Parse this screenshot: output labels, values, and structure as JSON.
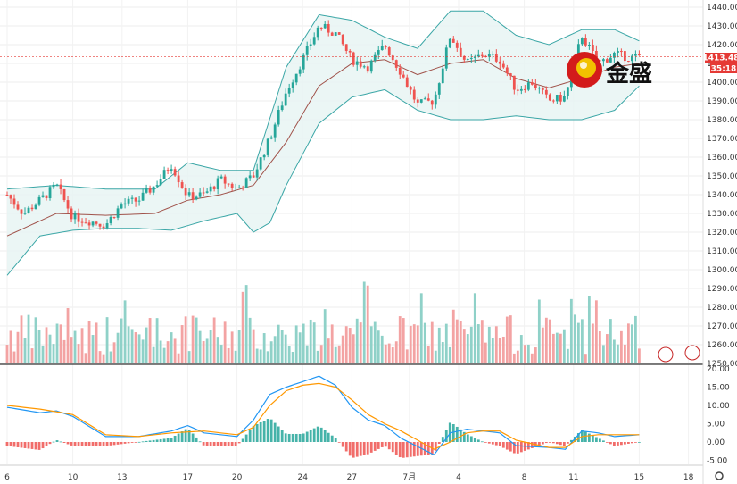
{
  "chart_data": {
    "type": "candlestick",
    "price_axis": {
      "range": [
        1245,
        1445
      ],
      "ticks": [
        "1440.00",
        "1430.00",
        "1420.00",
        "1410.00",
        "1400.00",
        "1390.00",
        "1380.00",
        "1370.00",
        "1360.00",
        "1350.00",
        "1340.00",
        "1330.00",
        "1320.00",
        "1310.00",
        "1300.00",
        "1290.00",
        "1280.00",
        "1270.00",
        "1260.00",
        "1250.00"
      ]
    },
    "macd_axis": {
      "range": [
        -6,
        21
      ],
      "ticks": [
        "20.00",
        "15.00",
        "10.00",
        "5.00",
        "0.00",
        "-5.00"
      ]
    },
    "date_ticks": [
      {
        "label": "6",
        "day": 0
      },
      {
        "label": "10",
        "day": 4
      },
      {
        "label": "13",
        "day": 7
      },
      {
        "label": "17",
        "day": 11
      },
      {
        "label": "20",
        "day": 14
      },
      {
        "label": "24",
        "day": 18
      },
      {
        "label": "27",
        "day": 21
      },
      {
        "label": "7月",
        "day": 24.5
      },
      {
        "label": "4",
        "day": 27.5
      },
      {
        "label": "8",
        "day": 31.5
      },
      {
        "label": "11",
        "day": 34.5
      },
      {
        "label": "15",
        "day": 38.5
      },
      {
        "label": "18",
        "day": 41.5
      }
    ],
    "last_price": {
      "value": "1413.48",
      "countdown": "35:18"
    },
    "close_path": [
      [
        0,
        1340
      ],
      [
        1,
        1330
      ],
      [
        2,
        1337
      ],
      [
        3,
        1345
      ],
      [
        4,
        1328
      ],
      [
        5,
        1326
      ],
      [
        6,
        1324
      ],
      [
        7,
        1335
      ],
      [
        8,
        1337
      ],
      [
        9,
        1345
      ],
      [
        10,
        1356
      ],
      [
        11,
        1339
      ],
      [
        12,
        1340
      ],
      [
        13,
        1348
      ],
      [
        14,
        1343
      ],
      [
        15,
        1350
      ],
      [
        16,
        1370
      ],
      [
        17,
        1395
      ],
      [
        18,
        1412
      ],
      [
        19,
        1430
      ],
      [
        20,
        1426
      ],
      [
        21,
        1412
      ],
      [
        22,
        1408
      ],
      [
        23,
        1420
      ],
      [
        24,
        1405
      ],
      [
        25,
        1388
      ],
      [
        26,
        1390
      ],
      [
        27,
        1425
      ],
      [
        28,
        1410
      ],
      [
        29,
        1415
      ],
      [
        30,
        1412
      ],
      [
        31,
        1396
      ],
      [
        32,
        1400
      ],
      [
        33,
        1390
      ],
      [
        34,
        1392
      ],
      [
        35,
        1425
      ],
      [
        36,
        1410
      ],
      [
        37,
        1415
      ],
      [
        38,
        1413
      ],
      [
        38.7,
        1413.5
      ]
    ],
    "bollinger": {
      "upper": [
        [
          0,
          1343
        ],
        [
          3,
          1345
        ],
        [
          6,
          1343
        ],
        [
          9,
          1343
        ],
        [
          11,
          1357
        ],
        [
          13,
          1353
        ],
        [
          15,
          1353
        ],
        [
          17,
          1408
        ],
        [
          19,
          1436
        ],
        [
          21,
          1433
        ],
        [
          23,
          1424
        ],
        [
          25,
          1418
        ],
        [
          27,
          1438
        ],
        [
          29,
          1438
        ],
        [
          31,
          1425
        ],
        [
          33,
          1420
        ],
        [
          35,
          1428
        ],
        [
          37,
          1428
        ],
        [
          38.5,
          1422
        ]
      ],
      "middle": [
        [
          0,
          1318
        ],
        [
          3,
          1330
        ],
        [
          6,
          1329
        ],
        [
          9,
          1330
        ],
        [
          11,
          1337
        ],
        [
          13,
          1340
        ],
        [
          15,
          1345
        ],
        [
          17,
          1368
        ],
        [
          19,
          1398
        ],
        [
          21,
          1410
        ],
        [
          23,
          1412
        ],
        [
          25,
          1404
        ],
        [
          27,
          1410
        ],
        [
          29,
          1412
        ],
        [
          31,
          1402
        ],
        [
          33,
          1397
        ],
        [
          35,
          1402
        ],
        [
          37,
          1408
        ],
        [
          38.5,
          1410
        ]
      ],
      "lower": [
        [
          0,
          1297
        ],
        [
          2,
          1318
        ],
        [
          4,
          1321
        ],
        [
          6,
          1322
        ],
        [
          8,
          1322
        ],
        [
          10,
          1321
        ],
        [
          12,
          1326
        ],
        [
          14,
          1330
        ],
        [
          15,
          1320
        ],
        [
          16,
          1325
        ],
        [
          17,
          1345
        ],
        [
          19,
          1378
        ],
        [
          21,
          1392
        ],
        [
          23,
          1396
        ],
        [
          25,
          1385
        ],
        [
          27,
          1380
        ],
        [
          29,
          1380
        ],
        [
          31,
          1382
        ],
        [
          33,
          1380
        ],
        [
          35,
          1380
        ],
        [
          37,
          1385
        ],
        [
          38.5,
          1398
        ]
      ]
    },
    "volume_count": 178,
    "macd_line": [
      [
        0,
        9.5
      ],
      [
        2,
        8
      ],
      [
        3,
        8.5
      ],
      [
        4,
        7
      ],
      [
        6,
        1.5
      ],
      [
        8,
        1.5
      ],
      [
        10,
        3
      ],
      [
        11,
        4.5
      ],
      [
        12,
        2.5
      ],
      [
        14,
        1.5
      ],
      [
        15,
        6
      ],
      [
        16,
        13
      ],
      [
        17,
        15
      ],
      [
        18,
        16.5
      ],
      [
        19,
        18
      ],
      [
        20,
        15.5
      ],
      [
        21,
        9.5
      ],
      [
        22,
        6
      ],
      [
        23,
        4.5
      ],
      [
        24,
        1
      ],
      [
        26,
        -3.5
      ],
      [
        27,
        2.5
      ],
      [
        28,
        3.5
      ],
      [
        29,
        3
      ],
      [
        30,
        2.5
      ],
      [
        31,
        -1
      ],
      [
        33,
        -1.5
      ],
      [
        34,
        -2
      ],
      [
        35,
        3
      ],
      [
        36,
        2.5
      ],
      [
        37,
        1.5
      ],
      [
        38.5,
        2
      ]
    ],
    "signal_line": [
      [
        0,
        10
      ],
      [
        2,
        9
      ],
      [
        4,
        7.5
      ],
      [
        6,
        2
      ],
      [
        8,
        1.5
      ],
      [
        10,
        2.5
      ],
      [
        12,
        3
      ],
      [
        14,
        2
      ],
      [
        15,
        4
      ],
      [
        16,
        10
      ],
      [
        17,
        14
      ],
      [
        18,
        15.5
      ],
      [
        19,
        16
      ],
      [
        20,
        15
      ],
      [
        21,
        11.5
      ],
      [
        22,
        7.5
      ],
      [
        23,
        5
      ],
      [
        24,
        3
      ],
      [
        26,
        -2
      ],
      [
        27,
        0
      ],
      [
        28,
        2.5
      ],
      [
        29,
        3
      ],
      [
        30,
        3
      ],
      [
        31,
        0.5
      ],
      [
        33,
        -1.5
      ],
      [
        34,
        -1.5
      ],
      [
        35,
        1.5
      ],
      [
        36,
        2
      ],
      [
        37,
        2
      ],
      [
        38.5,
        2
      ]
    ],
    "histogram_count": 178
  },
  "logo": {
    "text": "金盛"
  }
}
